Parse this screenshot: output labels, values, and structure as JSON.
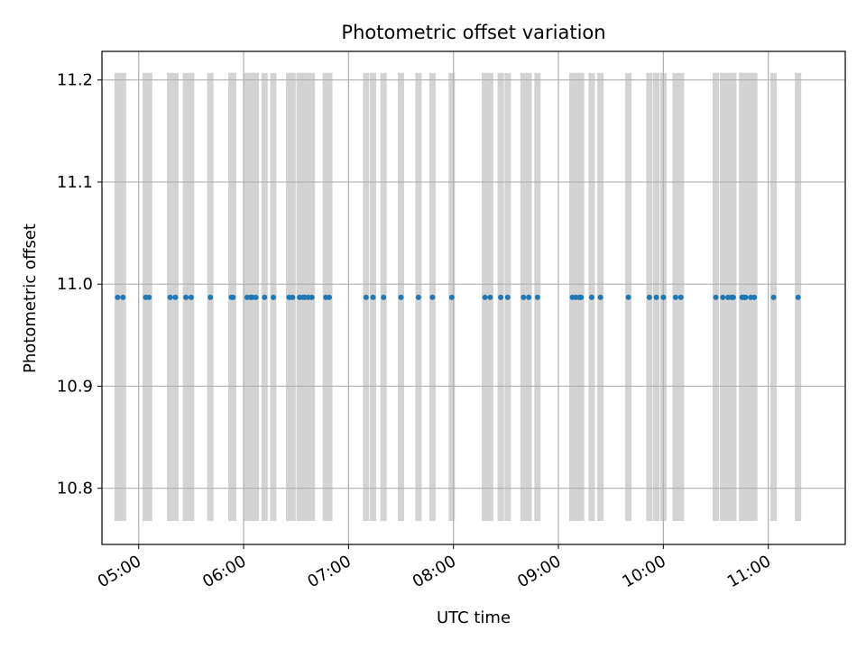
{
  "chart_data": {
    "type": "scatter",
    "title": "Photometric offset variation",
    "xlabel": "UTC time",
    "ylabel": "Photometric offset",
    "x_unit": "UTC time (HH:MM)",
    "xlim": [
      "04:39",
      "11:44"
    ],
    "ylim": [
      10.745,
      11.228
    ],
    "x_ticks": [
      "05:00",
      "06:00",
      "07:00",
      "08:00",
      "09:00",
      "10:00",
      "11:00"
    ],
    "y_ticks": [
      "10.8",
      "10.9",
      "11.0",
      "11.1",
      "11.2"
    ],
    "grid": true,
    "point_color": "#1f77b4",
    "band_color": "#d3d3d3",
    "band_range": [
      10.768,
      11.207
    ],
    "series": [
      {
        "x": [
          "04:48",
          "04:51",
          "05:04",
          "05:06",
          "05:18",
          "05:21",
          "05:27",
          "05:30",
          "05:41",
          "05:53",
          "05:54",
          "06:02",
          "06:04",
          "06:05",
          "06:07",
          "06:12",
          "06:17",
          "06:26",
          "06:28",
          "06:32",
          "06:34",
          "06:35",
          "06:37",
          "06:39",
          "06:47",
          "06:49",
          "07:10",
          "07:14",
          "07:20",
          "07:30",
          "07:40",
          "07:48",
          "07:59",
          "08:18",
          "08:21",
          "08:27",
          "08:31",
          "08:40",
          "08:43",
          "08:48",
          "09:08",
          "09:10",
          "09:12",
          "09:13",
          "09:19",
          "09:24",
          "09:40",
          "09:52",
          "09:56",
          "10:00",
          "10:07",
          "10:10",
          "10:30",
          "10:34",
          "10:37",
          "10:39",
          "10:40",
          "10:45",
          "10:46",
          "10:47",
          "10:50",
          "10:52",
          "11:03",
          "11:17"
        ],
        "y": [
          10.987,
          10.987,
          10.987,
          10.987,
          10.987,
          10.987,
          10.987,
          10.987,
          10.987,
          10.987,
          10.987,
          10.987,
          10.987,
          10.987,
          10.987,
          10.987,
          10.987,
          10.987,
          10.987,
          10.987,
          10.987,
          10.987,
          10.987,
          10.987,
          10.987,
          10.987,
          10.987,
          10.987,
          10.987,
          10.987,
          10.987,
          10.987,
          10.987,
          10.987,
          10.987,
          10.987,
          10.987,
          10.987,
          10.987,
          10.987,
          10.987,
          10.987,
          10.987,
          10.987,
          10.987,
          10.987,
          10.987,
          10.987,
          10.987,
          10.987,
          10.987,
          10.987,
          10.987,
          10.987,
          10.987,
          10.987,
          10.987,
          10.987,
          10.987,
          10.987,
          10.987,
          10.987,
          10.987,
          10.987
        ]
      }
    ]
  }
}
